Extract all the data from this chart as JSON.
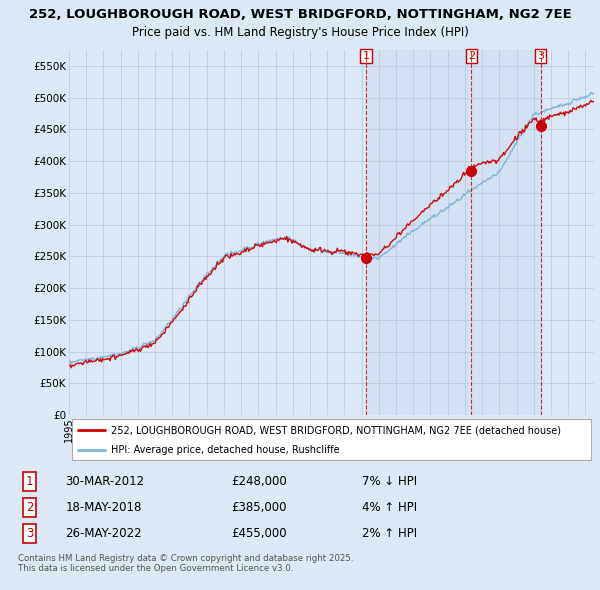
{
  "title1": "252, LOUGHBOROUGH ROAD, WEST BRIDGFORD, NOTTINGHAM, NG2 7EE",
  "title2": "Price paid vs. HM Land Registry's House Price Index (HPI)",
  "ylim": [
    0,
    575000
  ],
  "yticks": [
    0,
    50000,
    100000,
    150000,
    200000,
    250000,
    300000,
    350000,
    400000,
    450000,
    500000,
    550000
  ],
  "ytick_labels": [
    "£0",
    "£50K",
    "£100K",
    "£150K",
    "£200K",
    "£250K",
    "£300K",
    "£350K",
    "£400K",
    "£450K",
    "£500K",
    "£550K"
  ],
  "legend_line1": "252, LOUGHBOROUGH ROAD, WEST BRIDGFORD, NOTTINGHAM, NG2 7EE (detached house)",
  "legend_line2": "HPI: Average price, detached house, Rushcliffe",
  "sale1_date": "30-MAR-2012",
  "sale1_price": "£248,000",
  "sale1_hpi": "7% ↓ HPI",
  "sale2_date": "18-MAY-2018",
  "sale2_price": "£385,000",
  "sale2_hpi": "4% ↑ HPI",
  "sale3_date": "26-MAY-2022",
  "sale3_price": "£455,000",
  "sale3_hpi": "2% ↑ HPI",
  "footnote": "Contains HM Land Registry data © Crown copyright and database right 2025.\nThis data is licensed under the Open Government Licence v3.0.",
  "hpi_color": "#7ab4d8",
  "price_color": "#cc0000",
  "bg_color": "#dce8f5",
  "plot_bg": "#dce8f5",
  "shade_color": "#ccdff0",
  "grid_color": "#b8c8d8",
  "sale1_x": 2012.25,
  "sale2_x": 2018.38,
  "sale3_x": 2022.4,
  "sale1_val": 248000,
  "sale2_val": 385000,
  "sale3_val": 455000,
  "xmin": 1995,
  "xmax": 2025.5
}
